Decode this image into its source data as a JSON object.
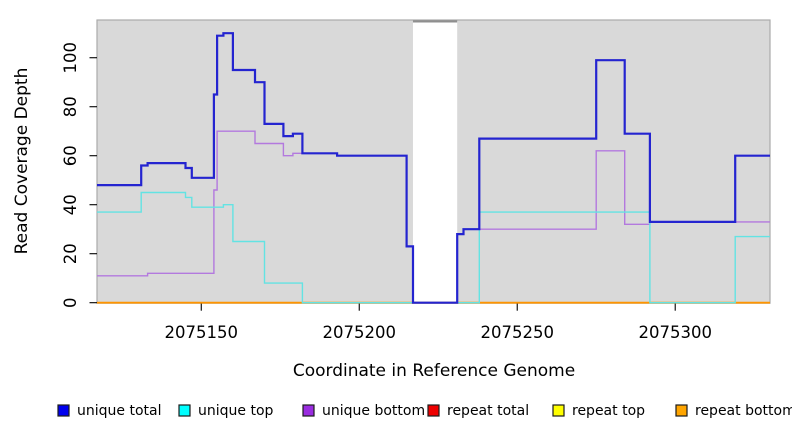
{
  "chart_data": {
    "type": "line",
    "subtype": "step-after",
    "title": "",
    "xlabel": "Coordinate in Reference Genome",
    "ylabel": "Read Coverage Depth",
    "xlim": [
      2075117,
      2075330
    ],
    "ylim": [
      0,
      115.4
    ],
    "x_ticks": [
      2075150,
      2075200,
      2075250,
      2075300
    ],
    "y_ticks": [
      0,
      20,
      40,
      60,
      80,
      100
    ],
    "grid": "off",
    "panel_bg": "#d9d9d9",
    "panel_border": "#ababab",
    "gap_region": {
      "x_start": 2075217,
      "x_end": 2075231,
      "fill": "#ffffff",
      "top_edge_color": "#8f8f8f"
    },
    "series": [
      {
        "name": "repeat total",
        "color": "#d40000",
        "width": 1.4,
        "points": [
          [
            2075117,
            0
          ],
          [
            2075330,
            0
          ]
        ]
      },
      {
        "name": "repeat top",
        "color": "#f2f200",
        "width": 1.4,
        "points": [
          [
            2075117,
            0
          ],
          [
            2075330,
            0
          ]
        ]
      },
      {
        "name": "repeat bottom",
        "color": "#ff9500",
        "width": 1.8,
        "points": [
          [
            2075117,
            0
          ],
          [
            2075330,
            0
          ]
        ]
      },
      {
        "name": "unique bottom",
        "color": "#b379de",
        "width": 1.4,
        "points": [
          [
            2075117,
            11
          ],
          [
            2075133,
            12
          ],
          [
            2075154,
            46
          ],
          [
            2075155,
            70
          ],
          [
            2075167,
            65
          ],
          [
            2075176,
            60
          ],
          [
            2075179,
            61
          ],
          [
            2075193,
            60
          ],
          [
            2075215,
            23
          ],
          [
            2075217,
            0
          ],
          [
            2075231,
            28
          ],
          [
            2075233,
            30
          ],
          [
            2075275,
            62
          ],
          [
            2075284,
            32
          ],
          [
            2075292,
            33
          ],
          [
            2075330,
            33
          ]
        ]
      },
      {
        "name": "unique top",
        "color": "#63e3e3",
        "width": 1.4,
        "points": [
          [
            2075117,
            37
          ],
          [
            2075131,
            45
          ],
          [
            2075145,
            43
          ],
          [
            2075147,
            39
          ],
          [
            2075157,
            40
          ],
          [
            2075160,
            25
          ],
          [
            2075170,
            8
          ],
          [
            2075182,
            0
          ],
          [
            2075238,
            37
          ],
          [
            2075292,
            0
          ],
          [
            2075319,
            27
          ],
          [
            2075330,
            27
          ]
        ]
      },
      {
        "name": "unique total",
        "color": "#2424d0",
        "width": 2.2,
        "points": [
          [
            2075117,
            48
          ],
          [
            2075131,
            56
          ],
          [
            2075133,
            57
          ],
          [
            2075145,
            55
          ],
          [
            2075147,
            51
          ],
          [
            2075154,
            85
          ],
          [
            2075155,
            109
          ],
          [
            2075157,
            110
          ],
          [
            2075160,
            95
          ],
          [
            2075167,
            90
          ],
          [
            2075170,
            73
          ],
          [
            2075176,
            68
          ],
          [
            2075179,
            69
          ],
          [
            2075182,
            61
          ],
          [
            2075193,
            60
          ],
          [
            2075215,
            23
          ],
          [
            2075217,
            0
          ],
          [
            2075231,
            28
          ],
          [
            2075233,
            30
          ],
          [
            2075238,
            67
          ],
          [
            2075275,
            99
          ],
          [
            2075284,
            69
          ],
          [
            2075292,
            33
          ],
          [
            2075319,
            60
          ],
          [
            2075330,
            60
          ]
        ]
      }
    ],
    "legend": {
      "position": "bottom",
      "entries": [
        {
          "label": "unique total",
          "fill": "#0000ee"
        },
        {
          "label": "unique top",
          "fill": "#00ffff"
        },
        {
          "label": "unique bottom",
          "fill": "#9a2ce0"
        },
        {
          "label": "repeat total",
          "fill": "#ee0000"
        },
        {
          "label": "repeat top",
          "fill": "#ffff00"
        },
        {
          "label": "repeat bottom",
          "fill": "#ffa500"
        }
      ]
    }
  }
}
